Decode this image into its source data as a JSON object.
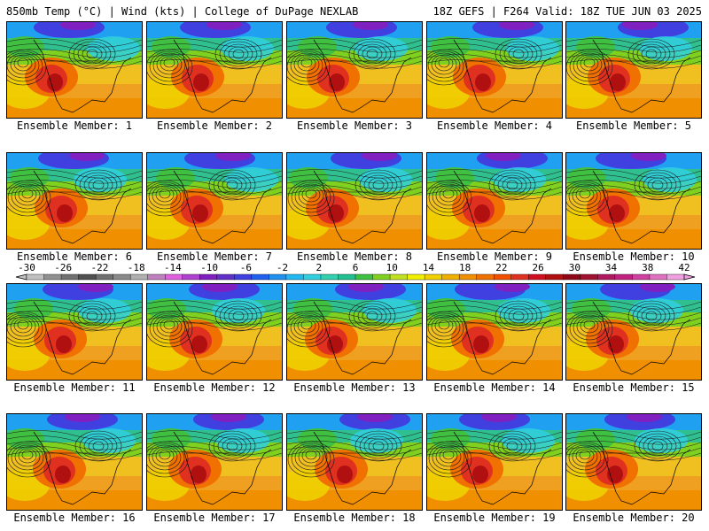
{
  "header": {
    "left": "850mb Temp (°C) | Wind (kts) | College of DuPage NEXLAB",
    "right": "18Z GEFS | F264 Valid: 18Z TUE JUN 03 2025"
  },
  "member_label_prefix": "Ensemble Member: ",
  "members": [
    "1",
    "2",
    "3",
    "4",
    "5",
    "6",
    "7",
    "8",
    "9",
    "10",
    "11",
    "12",
    "13",
    "14",
    "15",
    "16",
    "17",
    "18",
    "19",
    "20"
  ],
  "colorbar": {
    "ticks": [
      "-30",
      "-26",
      "-22",
      "-18",
      "-14",
      "-10",
      "-6",
      "-2",
      "2",
      "6",
      "10",
      "14",
      "18",
      "22",
      "26",
      "30",
      "34",
      "38",
      "42"
    ],
    "colors": [
      "#c0c0c0",
      "#909090",
      "#707070",
      "#505050",
      "#707070",
      "#8a8a8a",
      "#b0b0b0",
      "#c080c0",
      "#e060e0",
      "#b040d0",
      "#8020c0",
      "#6030c8",
      "#4040e0",
      "#2060f0",
      "#2090f0",
      "#20b8f0",
      "#30d0e0",
      "#30d0b0",
      "#20c090",
      "#40c040",
      "#80d020",
      "#c0e020",
      "#f0f000",
      "#f0d000",
      "#f0b000",
      "#f09000",
      "#f07000",
      "#f05000",
      "#e03020",
      "#d01020",
      "#b01010",
      "#900818",
      "#a01030",
      "#b01860",
      "#c02080",
      "#d040a0",
      "#e070c0",
      "#f0a0e0"
    ]
  }
}
